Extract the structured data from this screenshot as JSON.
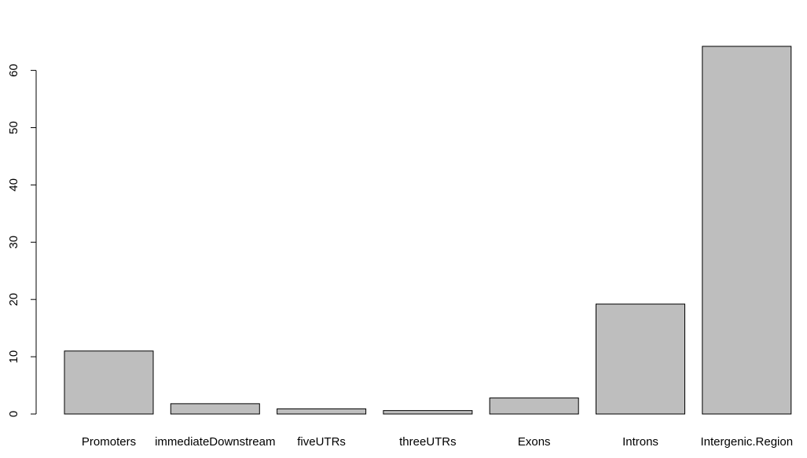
{
  "chart_data": {
    "type": "bar",
    "categories": [
      "Promoters",
      "immediateDownstream",
      "fiveUTRs",
      "threeUTRs",
      "Exons",
      "Introns",
      "Intergenic.Region"
    ],
    "values": [
      11.0,
      1.8,
      0.9,
      0.6,
      2.8,
      19.2,
      64.2
    ],
    "title": "",
    "xlabel": "",
    "ylabel": "",
    "ylim": [
      0,
      60
    ],
    "yticks": [
      0,
      10,
      20,
      30,
      40,
      50,
      60
    ],
    "bar_fill": "#bebebe",
    "bar_stroke": "#000000",
    "grid": false,
    "legend": "none"
  }
}
